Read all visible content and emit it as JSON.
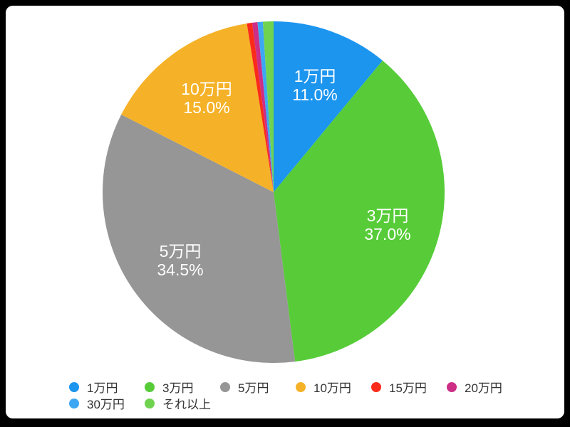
{
  "chart_data": {
    "type": "pie",
    "title": "",
    "direction": "clockwise",
    "start_angle_deg": 0,
    "legend_position": "bottom",
    "background_color": "#FFFFFF",
    "frame_color": "#000000",
    "slice_label_color": "#FFFFFF",
    "legend_text_color": "#333333",
    "slices": [
      {
        "label": "1万円",
        "value": 11.0,
        "pct_label": "11.0%",
        "color": "#1C95EF"
      },
      {
        "label": "3万円",
        "value": 37.0,
        "pct_label": "37.0%",
        "color": "#57CC38"
      },
      {
        "label": "5万円",
        "value": 34.5,
        "pct_label": "34.5%",
        "color": "#969696"
      },
      {
        "label": "10万円",
        "value": 15.0,
        "pct_label": "15.0%",
        "color": "#F5B228"
      },
      {
        "label": "15万円",
        "value": 0.5,
        "pct_label": "",
        "color": "#FA2B1A"
      },
      {
        "label": "20万円",
        "value": 0.5,
        "pct_label": "",
        "color": "#CD2E86"
      },
      {
        "label": "30万円",
        "value": 0.5,
        "pct_label": "",
        "color": "#3EA7F3"
      },
      {
        "label": "それ以上",
        "value": 1.0,
        "pct_label": "",
        "color": "#6FD34F"
      }
    ]
  }
}
